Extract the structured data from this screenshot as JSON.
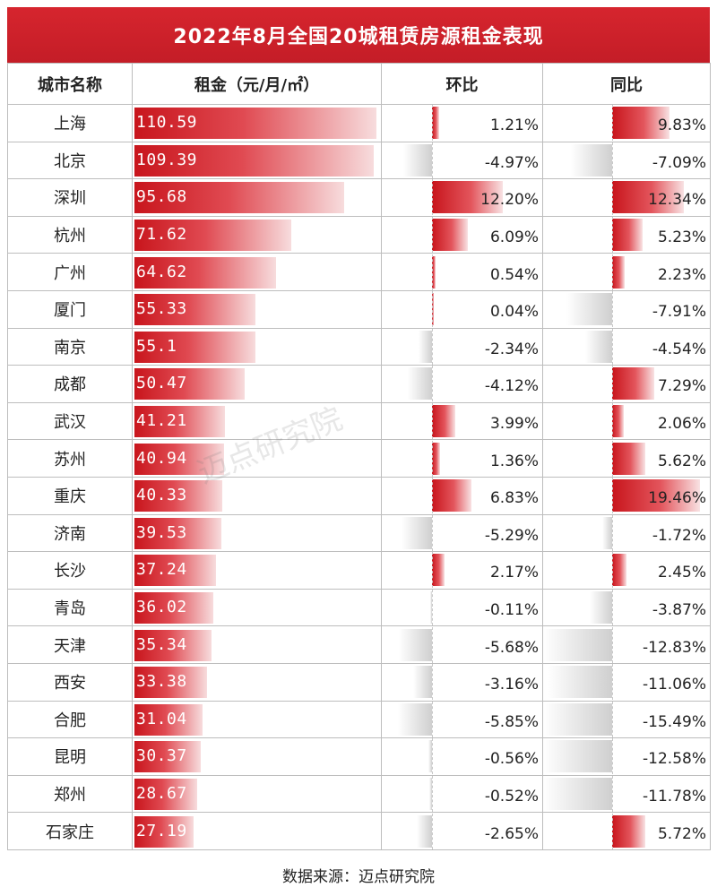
{
  "title": "2022年8月全国20城租赁房源租金表现",
  "headers": {
    "city": "城市名称",
    "rent": "租金（元/月/㎡）",
    "mom": "环比",
    "yoy": "同比"
  },
  "source": "数据来源：迈点研究院",
  "watermark": "迈点研究院",
  "colors": {
    "header_bg": "#c41d27",
    "positive": "#c8151c",
    "negative": "#cfcfcf"
  },
  "chart_data": {
    "type": "table",
    "columns": [
      "城市名称",
      "租金（元/月/㎡）",
      "环比",
      "同比"
    ],
    "rows": [
      {
        "city": "上海",
        "rent": 110.59,
        "mom": 1.21,
        "yoy": 9.83
      },
      {
        "city": "北京",
        "rent": 109.39,
        "mom": -4.97,
        "yoy": -7.09
      },
      {
        "city": "深圳",
        "rent": 95.68,
        "mom": 12.2,
        "yoy": 12.34
      },
      {
        "city": "杭州",
        "rent": 71.62,
        "mom": 6.09,
        "yoy": 5.23
      },
      {
        "city": "广州",
        "rent": 64.62,
        "mom": 0.54,
        "yoy": 2.23
      },
      {
        "city": "厦门",
        "rent": 55.33,
        "mom": 0.04,
        "yoy": -7.91
      },
      {
        "city": "南京",
        "rent": 55.1,
        "mom": -2.34,
        "yoy": -4.54
      },
      {
        "city": "成都",
        "rent": 50.47,
        "mom": -4.12,
        "yoy": 7.29
      },
      {
        "city": "武汉",
        "rent": 41.21,
        "mom": 3.99,
        "yoy": 2.06
      },
      {
        "city": "苏州",
        "rent": 40.94,
        "mom": 1.36,
        "yoy": 5.62
      },
      {
        "city": "重庆",
        "rent": 40.33,
        "mom": 6.83,
        "yoy": 19.46
      },
      {
        "city": "济南",
        "rent": 39.53,
        "mom": -5.29,
        "yoy": -1.72
      },
      {
        "city": "长沙",
        "rent": 37.24,
        "mom": 2.17,
        "yoy": 2.45
      },
      {
        "city": "青岛",
        "rent": 36.02,
        "mom": -0.11,
        "yoy": -3.87
      },
      {
        "city": "天津",
        "rent": 35.34,
        "mom": -5.68,
        "yoy": -12.83
      },
      {
        "city": "西安",
        "rent": 33.38,
        "mom": -3.16,
        "yoy": -11.06
      },
      {
        "city": "合肥",
        "rent": 31.04,
        "mom": -5.85,
        "yoy": -15.49
      },
      {
        "city": "昆明",
        "rent": 30.37,
        "mom": -0.56,
        "yoy": -12.58
      },
      {
        "city": "郑州",
        "rent": 28.67,
        "mom": -0.52,
        "yoy": -11.78
      },
      {
        "city": "石家庄",
        "rent": 27.19,
        "mom": -2.65,
        "yoy": 5.72
      }
    ]
  }
}
